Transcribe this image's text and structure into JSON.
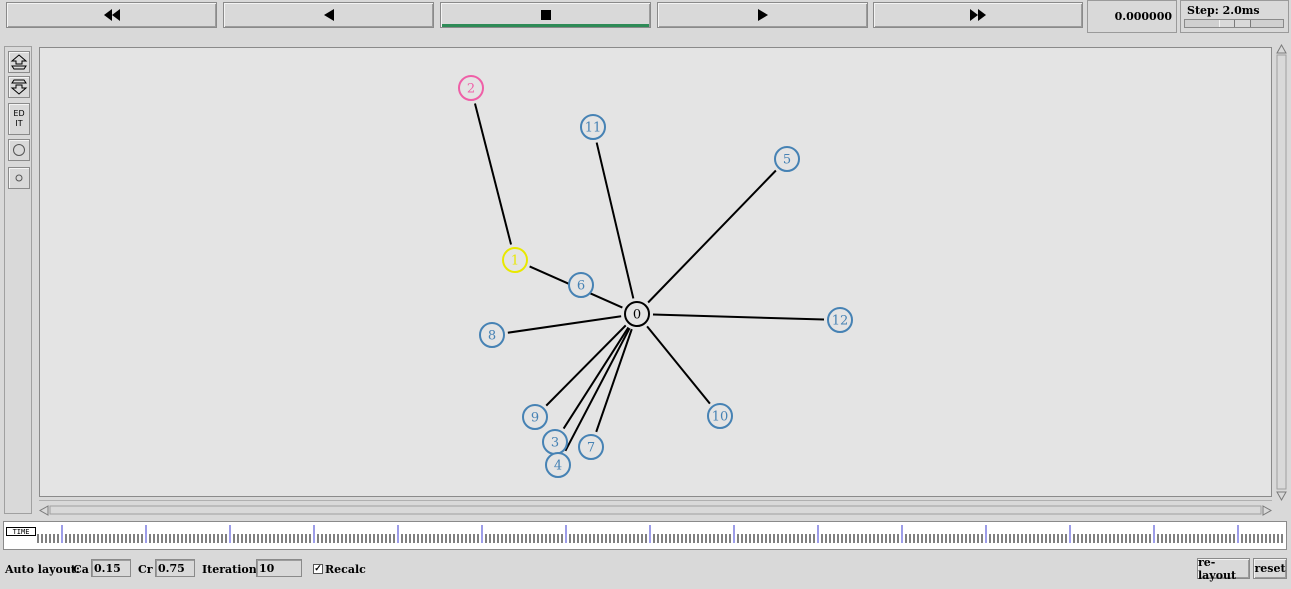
{
  "controls": {
    "rewind_icon": "fast-rewind-icon",
    "back_icon": "step-back-icon",
    "stop_icon": "stop-icon",
    "play_icon": "play-icon",
    "forward_icon": "fast-forward-icon",
    "time_value": "0.000000",
    "step_label": "Step: 2.0ms",
    "step_slider_fraction": 0.5,
    "stop_active_color": "#2e8b57"
  },
  "toolbar": {
    "zoom_in_icon": "zoom-in-icon",
    "zoom_out_icon": "zoom-out-icon",
    "edit_label_line1": "ED",
    "edit_label_line2": "IT",
    "large_node_icon": "circle-large-icon",
    "small_node_icon": "circle-small-icon"
  },
  "network": {
    "nodes": [
      {
        "id": "0",
        "color": "#000000"
      },
      {
        "id": "1",
        "color": "#e8e800"
      },
      {
        "id": "2",
        "color": "#ef5fa7"
      },
      {
        "id": "3",
        "color": "#4682b4"
      },
      {
        "id": "4",
        "color": "#4682b4"
      },
      {
        "id": "5",
        "color": "#4682b4"
      },
      {
        "id": "6",
        "color": "#4682b4"
      },
      {
        "id": "7",
        "color": "#4682b4"
      },
      {
        "id": "8",
        "color": "#4682b4"
      },
      {
        "id": "9",
        "color": "#4682b4"
      },
      {
        "id": "10",
        "color": "#4682b4"
      },
      {
        "id": "11",
        "color": "#4682b4"
      },
      {
        "id": "12",
        "color": "#4682b4"
      }
    ],
    "links": [
      [
        "0",
        "1"
      ],
      [
        "1",
        "2"
      ],
      [
        "0",
        "3"
      ],
      [
        "0",
        "4"
      ],
      [
        "0",
        "5"
      ],
      [
        "0",
        "7"
      ],
      [
        "0",
        "8"
      ],
      [
        "0",
        "9"
      ],
      [
        "0",
        "10"
      ],
      [
        "0",
        "11"
      ],
      [
        "0",
        "12"
      ]
    ]
  },
  "timeline": {
    "tag": "TIME"
  },
  "bottom": {
    "auto_layout_label": "Auto layout:",
    "ca_label": "Ca",
    "ca_value": "0.15",
    "cr_label": "Cr",
    "cr_value": "0.75",
    "iterations_label": "Iterations",
    "iterations_value": "10",
    "recalc_label": "Recalc",
    "recalc_checked": true,
    "relayout_label": "re-layout",
    "reset_label": "reset"
  }
}
